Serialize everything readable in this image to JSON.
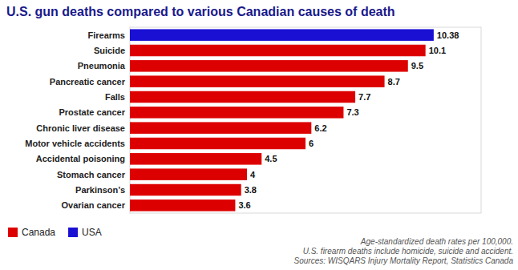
{
  "chart_data": {
    "type": "bar",
    "orientation": "horizontal",
    "stacked": true,
    "title": "U.S. gun deaths compared to various Canadian causes of death",
    "categories": [
      "Firearms",
      "Suicide",
      "Pneumonia",
      "Pancreatic cancer",
      "Falls",
      "Prostate cancer",
      "Chronic liver disease",
      "Motor vehicle accidents",
      "Accidental poisoning",
      "Stomach cancer",
      "Parkinson’s",
      "Ovarian cancer"
    ],
    "series": [
      {
        "name": "Canada",
        "color": "#dd0000",
        "values": [
          null,
          10.1,
          9.5,
          8.7,
          7.7,
          7.3,
          6.2,
          6,
          4.5,
          4,
          3.8,
          3.6
        ]
      },
      {
        "name": "USA",
        "color": "#1a10d4",
        "values": [
          10.38,
          null,
          null,
          null,
          null,
          null,
          null,
          null,
          null,
          null,
          null,
          null
        ]
      }
    ],
    "xlim": [
      0,
      12.0
    ],
    "data_labels": true,
    "tick_labels": "y",
    "legend": "lower left",
    "annotations": [
      "Age-standardized death rates per 100,000.",
      "U.S. firearm deaths include homicide, suicide and accident.",
      "Sources: WISQARS Injury Mortality Report, Statistics Canada"
    ]
  }
}
